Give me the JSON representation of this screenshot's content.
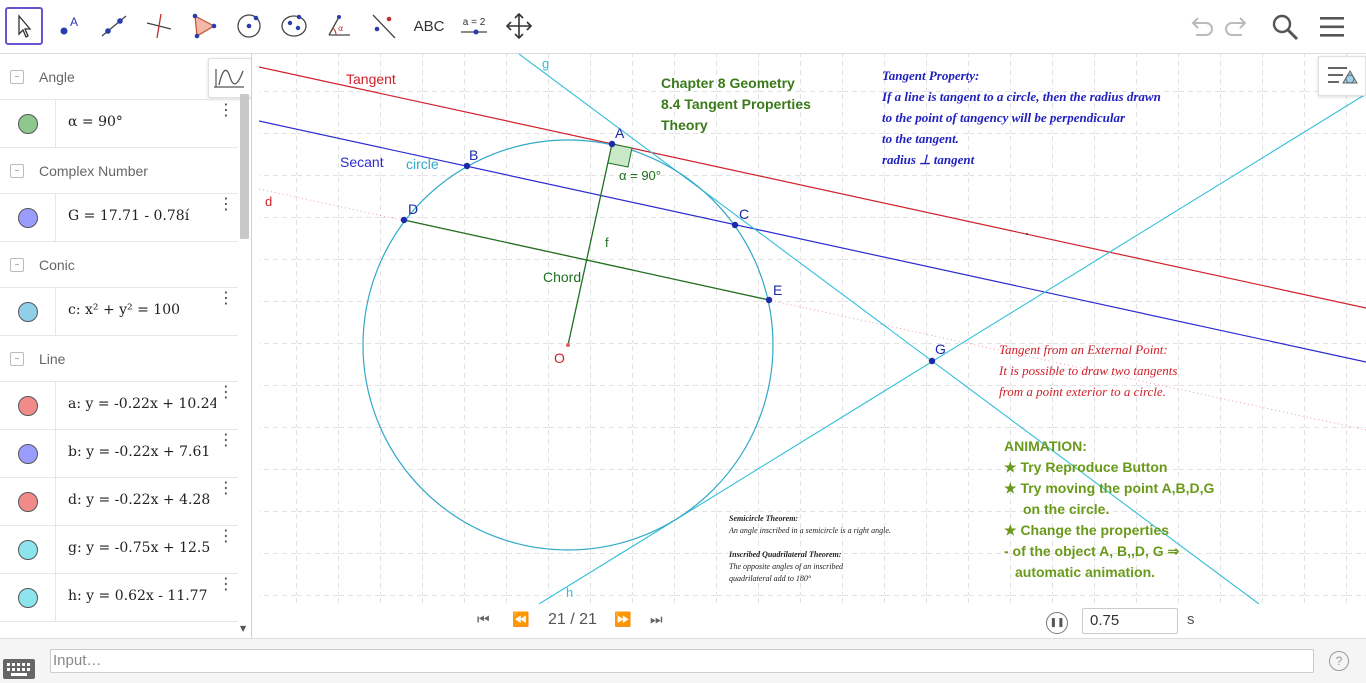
{
  "toolbar": {
    "tools": [
      {
        "name": "move-tool",
        "icon": "cursor-arrow"
      },
      {
        "name": "point-tool",
        "icon": "point-a"
      },
      {
        "name": "line-tool",
        "icon": "line-two-points"
      },
      {
        "name": "perpendicular-line-tool",
        "icon": "perpendicular-line"
      },
      {
        "name": "polygon-tool",
        "icon": "polygon"
      },
      {
        "name": "circle-center-point-tool",
        "icon": "circle-center"
      },
      {
        "name": "ellipse-tool",
        "icon": "ellipse"
      },
      {
        "name": "angle-tool",
        "icon": "angle"
      },
      {
        "name": "reflect-tool",
        "icon": "reflect-about-line"
      },
      {
        "name": "text-tool",
        "label": "ABC"
      },
      {
        "name": "slider-tool",
        "label": "a = 2"
      },
      {
        "name": "move-graphics-tool",
        "icon": "move-arrows"
      }
    ],
    "right": [
      "undo-icon",
      "redo-icon",
      "search-icon",
      "menu-icon"
    ]
  },
  "algebra": {
    "groups": [
      {
        "label": "Angle"
      },
      {
        "label": "Complex Number"
      },
      {
        "label": "Conic"
      },
      {
        "label": "Line"
      }
    ],
    "items": [
      {
        "expr": "α = 90°",
        "color": "#8fc88f"
      },
      {
        "expr": "G = 17.71 - 0.78í",
        "color": "#9c9cff"
      },
      {
        "expr": "c: x² + y² = 100",
        "color": "#8fd0e8"
      },
      {
        "expr": "a: y = -0.22x + 10.24",
        "color": "#f28a8a"
      },
      {
        "expr": "b: y = -0.22x + 7.61",
        "color": "#9c9cff"
      },
      {
        "expr": "d: y = -0.22x + 4.28",
        "color": "#f28a8a"
      },
      {
        "expr": "g: y = -0.75x + 12.5",
        "color": "#8ce4ec"
      },
      {
        "expr": "h: y = 0.62x - 11.77",
        "color": "#8ce4ec"
      }
    ]
  },
  "graphics": {
    "labels": {
      "tangent": "Tangent",
      "secant": "Secant",
      "circle": "circle",
      "chord": "Chord",
      "d": "d",
      "f": "f",
      "g": "g",
      "h": "h",
      "A": "A",
      "B": "B",
      "C": "C",
      "D": "D",
      "E": "E",
      "G": "G",
      "O": "O",
      "alpha": "α = 90°"
    },
    "title": {
      "line1": "Chapter 8 Geometry",
      "line2": "8.4 Tangent Properties",
      "line3": "Theory"
    },
    "tangent_property": {
      "line1": "Tangent Property:",
      "line2": "If a line is tangent to a circle,  then the radius drawn",
      "line3": "to the point of tangency will be perpendicular",
      "line4": "to the tangent.",
      "line5": "radius ⊥ tangent"
    },
    "external_point": {
      "line1": "Tangent from an External Point:",
      "line2": "It is possible to draw two tangents",
      "line3": "from a point exterior to a circle."
    },
    "animation_text": {
      "line1": "ANIMATION:",
      "line2": "★ Try Reproduce Button",
      "line3": "★ Try moving the point A,B,D,G",
      "line4": "on the circle.",
      "line5": "★ Change the properties",
      "line6": "- of the object A, B,,D, G  ⇒",
      "line7": "automatic animation."
    },
    "theorems": {
      "line1": "Semicircle Theorem:",
      "line2": "An angle inscribed in a semicircle is a right angle.",
      "line3": "Inscribed Quadrilateral Theorem:",
      "line4": "The opposite angles of an inscribed",
      "line5": "quadrilateral   add to 180°"
    }
  },
  "animation": {
    "counter": "21 / 21",
    "speed": "0.75",
    "unit": "s"
  },
  "input_bar": {
    "placeholder": "Input…",
    "help": "?"
  },
  "colors": {
    "tangent": "#d0202a",
    "secant": "#2b2bd0",
    "cyan": "#30c0d8",
    "chord": "#1f6f1f",
    "green_text": "#6a9a1a",
    "blue_text": "#2020c0",
    "red_text": "#d0202a"
  }
}
